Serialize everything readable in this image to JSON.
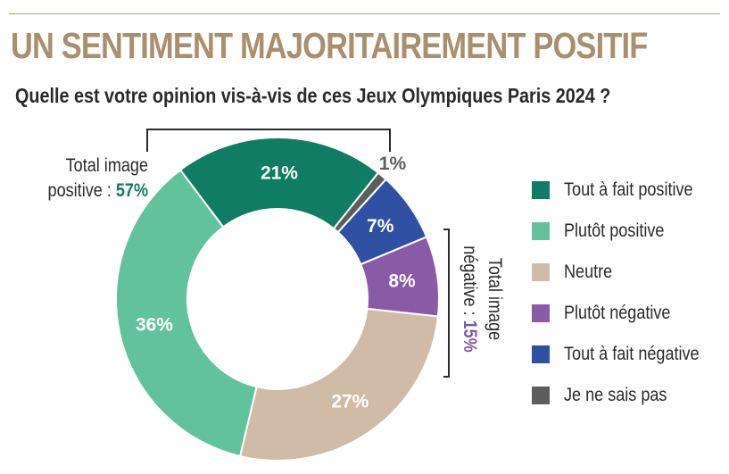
{
  "title": "UN SENTIMENT MAJORITAIREMENT POSITIF",
  "subtitle": "Quelle est votre opinion vis-à-vis de ces  Jeux Olympiques Paris 2024 ?",
  "totals": {
    "positive_label_line1": "Total image",
    "positive_label_line2": "positive :",
    "positive_pct": "57%",
    "negative_label_line1": "Total image",
    "negative_label_line2": "négative :",
    "negative_pct": "15%"
  },
  "chart_data": {
    "type": "pie",
    "donut": true,
    "categories": [
      "Tout à fait positive",
      "Je ne sais pas",
      "Tout à fait négative",
      "Plutôt négative",
      "Neutre",
      "Plutôt positive"
    ],
    "values": [
      21,
      1,
      7,
      8,
      27,
      36
    ],
    "labels": [
      "21%",
      "1%",
      "7%",
      "8%",
      "27%",
      "36%"
    ],
    "colors": [
      "#0f7c63",
      "#5d5d5d",
      "#2f50a3",
      "#8a5aa6",
      "#cfbba6",
      "#62c29d"
    ],
    "legend_position": "right"
  },
  "legend": [
    {
      "label": "Tout à fait positive",
      "color": "#0f7c63"
    },
    {
      "label": "Plutôt positive",
      "color": "#62c29d"
    },
    {
      "label": "Neutre",
      "color": "#cfbba6"
    },
    {
      "label": "Plutôt négative",
      "color": "#8a5aa6"
    },
    {
      "label": "Tout à fait négative",
      "color": "#2f50a3"
    },
    {
      "label": "Je ne sais pas",
      "color": "#5d5d5d"
    }
  ]
}
